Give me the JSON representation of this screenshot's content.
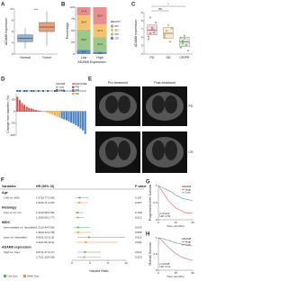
{
  "chart_data": [
    {
      "type": "box",
      "label": "A",
      "ylabel": "ADAM8 expression",
      "categories": [
        "Normal",
        "Tumor"
      ],
      "colors": [
        "#8fb3d9",
        "#e8a07a"
      ],
      "boxes": [
        {
          "min": 3.0,
          "q1": 4.2,
          "median": 4.8,
          "q3": 5.4,
          "max": 6.6
        },
        {
          "min": 3.5,
          "q1": 6.0,
          "median": 6.8,
          "q3": 7.6,
          "max": 9.6
        }
      ],
      "annotation": "***",
      "ylim": [
        2,
        10
      ],
      "yticks": [
        2,
        4,
        6,
        8,
        10
      ]
    },
    {
      "type": "stacked_bar",
      "label": "B",
      "ylabel": "Percentage",
      "xlabel": "ADAM8 Expression",
      "categories": [
        "Low",
        "High"
      ],
      "legend_title": "RECIST",
      "series": [
        {
          "name": "CR",
          "color": "#5b8fc7",
          "values": [
            8.7,
            4.5
          ]
        },
        {
          "name": "PR",
          "color": "#9cc98a",
          "values": [
            43.5,
            31.8
          ]
        },
        {
          "name": "SD",
          "color": "#f2c46d",
          "values": [
            30.4,
            27.3
          ]
        },
        {
          "name": "PD",
          "color": "#e78f8e",
          "values": [
            17.4,
            36.4
          ]
        }
      ],
      "ylim": [
        0,
        100
      ],
      "yticks": [
        0,
        25,
        50,
        75,
        100
      ]
    },
    {
      "type": "dot_box",
      "label": "C",
      "ylabel": "ADAM8 expression",
      "categories": [
        "PD",
        "SD",
        "CR/PR"
      ],
      "colors": [
        "#e78f8e",
        "#f2c46d",
        "#9cc98a"
      ],
      "points": [
        [
          5.8,
          6.5,
          7.2,
          6.9,
          7.8,
          6.1,
          8.4,
          7.0,
          6.6
        ],
        [
          6.0,
          6.8,
          7.5,
          5.5,
          7.1,
          6.3
        ],
        [
          4.8,
          5.6,
          6.2,
          5.1,
          4.4,
          6.0,
          5.3,
          5.9
        ]
      ],
      "boxes": [
        {
          "q1": 6.3,
          "median": 6.9,
          "q3": 7.5
        },
        {
          "q1": 5.9,
          "median": 6.5,
          "q3": 7.2
        },
        {
          "q1": 4.9,
          "median": 5.5,
          "q3": 6.0
        }
      ],
      "annotations": [
        "ns",
        "*"
      ],
      "ylim": [
        4,
        9
      ],
      "yticks": [
        4,
        5,
        6,
        7,
        8,
        9
      ]
    },
    {
      "type": "waterfall",
      "label": "D",
      "ylabel": "Change from baseline (%)",
      "values": [
        62,
        48,
        35,
        28,
        20,
        15,
        12,
        9,
        6,
        4,
        2,
        0,
        -3,
        -6,
        -10,
        -14,
        -18,
        -22,
        -26,
        -30,
        -34,
        -38,
        -42,
        -48,
        -52,
        -58,
        -64,
        -72,
        -80,
        -95
      ],
      "responses": [
        "PD",
        "PD",
        "PD",
        "PD",
        "PD",
        "PD",
        "PD",
        "PD",
        "PD",
        "PD",
        "PD",
        "SD",
        "SD",
        "SD",
        "SD",
        "SD",
        "SD",
        "SD",
        "SD",
        "PR",
        "PR",
        "PR",
        "PR",
        "PR",
        "PR",
        "PR",
        "PR",
        "PR",
        "PR",
        "PR"
      ],
      "groups": [
        "High",
        "High",
        "Low",
        "High",
        "High",
        "Low",
        "High",
        "High",
        "Low",
        "High",
        "Low",
        "High",
        "Low",
        "High",
        "Low",
        "Low",
        "High",
        "Low",
        "Low",
        "Low",
        "High",
        "Low",
        "Low",
        "Low",
        "High",
        "Low",
        "Low",
        "Low",
        "Low",
        "Low"
      ],
      "legend": [
        {
          "title": "ADAM8",
          "names": [
            "Low",
            "High"
          ],
          "colors": [
            "#bdbdbd",
            "#3b6aa0"
          ]
        },
        {
          "title": "RESPONSE",
          "names": [
            "PD",
            "PR",
            "SD"
          ],
          "colors": [
            "#d9534f",
            "#4a7fc1",
            "#f0ad4e"
          ]
        }
      ],
      "ylim": [
        -100,
        75
      ],
      "yticks": [
        -100,
        -50,
        0,
        50
      ]
    },
    {
      "type": "forest",
      "label": "F",
      "columns": [
        "Variables",
        "HR (95% CI)",
        "P value"
      ],
      "xlabel": "Hazard Ratio",
      "legend": [
        {
          "name": "Uni-Cox",
          "color": "#4caf50"
        },
        {
          "name": "Multi-Cox",
          "color": "#f28c28"
        }
      ],
      "groups": [
        {
          "name": "Age",
          "comparisons": [
            {
              "label": "(>60 vs. ≤60)",
              "uni": {
                "hr": 1.67,
                "lo": 0.77,
                "hi": 3.65,
                "label": "1.67(0.77-3.65)",
                "p": 0.197
              },
              "multi": {
                "hr": 1.6,
                "lo": 0.71,
                "hi": 3.6,
                "label": "1.60(0.71-3.60)",
                "p": 0.257
              }
            }
          ]
        },
        {
          "name": "Histology",
          "comparisons": [
            {
              "label": "(non-cc vs. cc)",
              "uni": {
                "hr": 1.23,
                "lo": 0.58,
                "hi": 2.58,
                "label": "1.23(0.58-2.58)",
                "p": 0.726
              },
              "multi": {
                "hr": 1.29,
                "lo": 0.6,
                "hi": 2.77,
                "label": "1.29(0.60-2.77)",
                "p": 0.612
              }
            }
          ]
        },
        {
          "name": "IMDC",
          "comparisons": [
            {
              "label": "(intermediate vs. favorable)",
              "uni": {
                "hr": 1.31,
                "lo": 0.44,
                "hi": 3.9,
                "label": "1.31(0.44-3.90)",
                "p": 0.623
              },
              "multi": {
                "hr": 1.36,
                "lo": 0.44,
                "hi": 4.18,
                "label": "1.36(0.44-4.18)",
                "p": 0.595
              }
            },
            {
              "label": "(poor vs. favorable)",
              "uni": {
                "hr": 3.8,
                "lo": 1.22,
                "hi": 11.8,
                "label": "3.80(1.22-11.8)",
                "p": 0.021
              },
              "multi": {
                "hr": 3.11,
                "lo": 0.95,
                "hi": 10.2,
                "label": "3.11(0.95-10.2)",
                "p": 0.061
              }
            }
          ]
        },
        {
          "name": "ADAM8 expression",
          "comparisons": [
            {
              "label": "(high vs. low)",
              "uni": {
                "hr": 2.87,
                "lo": 1.27,
                "hi": 6.47,
                "label": "2.87(1.27-6.47)",
                "p": 0.011
              },
              "multi": {
                "hr": 2.71,
                "lo": 1.15,
                "hi": 6.38,
                "label": "2.71(1.15-6.38)",
                "p": 0.023
              }
            }
          ]
        }
      ],
      "xlim": [
        0,
        12
      ],
      "xticks": [
        0,
        4,
        8,
        12
      ]
    },
    {
      "type": "km",
      "label": "G",
      "ylabel": "Progression-free Survival",
      "xlabel": "Time (months)",
      "legend_title": "ADAM8",
      "x": [
        0,
        2,
        4,
        6,
        8,
        10,
        12,
        14,
        16,
        18,
        20
      ],
      "series": [
        {
          "name": "High",
          "color": "#e0605e",
          "values": [
            1,
            0.85,
            0.7,
            0.55,
            0.45,
            0.35,
            0.3,
            0.25,
            0.2,
            0.2,
            0.2
          ]
        },
        {
          "name": "Low",
          "color": "#5b8fc7",
          "values": [
            1,
            0.95,
            0.9,
            0.85,
            0.8,
            0.72,
            0.68,
            0.62,
            0.6,
            0.58,
            0.55
          ]
        }
      ],
      "annotations": [
        "p=0.013",
        "HR: 2.53"
      ],
      "xlim": [
        0,
        20
      ],
      "xticks": [
        0,
        10,
        20
      ],
      "ylim": [
        0,
        1
      ],
      "yticks": [
        0,
        0.5,
        1
      ]
    },
    {
      "type": "km",
      "label": "H",
      "ylabel": "Overall Survival",
      "xlabel": "Time (months)",
      "legend_title": "ADAM8",
      "x": [
        0,
        3,
        6,
        9,
        12,
        15,
        18,
        21,
        24,
        27,
        30
      ],
      "series": [
        {
          "name": "High",
          "color": "#e0605e",
          "values": [
            1,
            0.92,
            0.8,
            0.7,
            0.6,
            0.52,
            0.45,
            0.4,
            0.36,
            0.33,
            0.3
          ]
        },
        {
          "name": "Low",
          "color": "#5b8fc7",
          "values": [
            1,
            0.98,
            0.95,
            0.92,
            0.88,
            0.85,
            0.82,
            0.8,
            0.78,
            0.76,
            0.75
          ]
        }
      ],
      "annotations": [
        "p=0.005",
        "HR: 3.12"
      ],
      "xlim": [
        0,
        30
      ],
      "xticks": [
        0,
        15,
        30
      ],
      "ylim": [
        0,
        1
      ],
      "yticks": [
        0,
        0.5,
        1
      ]
    }
  ],
  "ct_panel": {
    "label": "E",
    "columns": [
      "Pre-treatment",
      "Post-treatment"
    ],
    "rows": [
      "PD",
      "CR"
    ]
  }
}
